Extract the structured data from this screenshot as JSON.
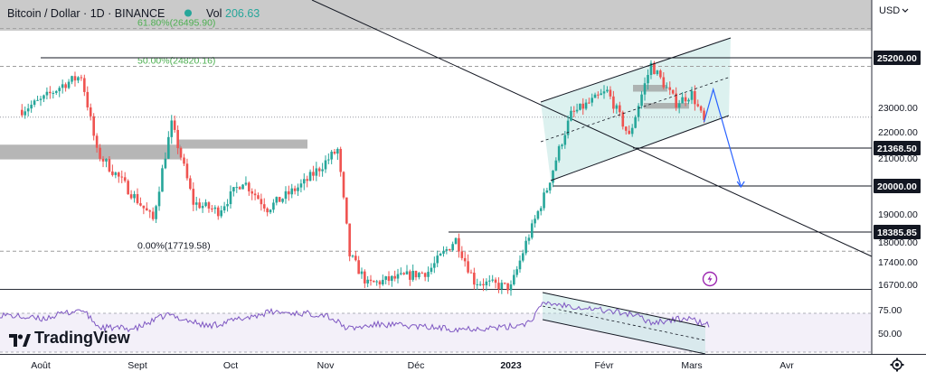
{
  "header": {
    "symbol_title": "Bitcoin / Dollar · 1D · BINANCE",
    "vol_label": "Vol",
    "vol_value": "206.63",
    "currency": "USD",
    "status_color": "#26a69a"
  },
  "price_axis": {
    "ticks": [
      "23000.00",
      "22000.00",
      "21000.00",
      "19000.00",
      "18000.00",
      "17400.00",
      "16700.00"
    ],
    "badges": [
      "25200.00",
      "21368.50",
      "20000.00",
      "18385.85"
    ]
  },
  "rsi_axis": {
    "ticks": [
      "75.00",
      "50.00"
    ]
  },
  "time_axis": {
    "labels": [
      "Août",
      "Sept",
      "Oct",
      "Nov",
      "Déc",
      "2023",
      "Févr",
      "Mars",
      "Avr"
    ]
  },
  "fib_labels": [
    "61.80%(26495.90)",
    "50.00%(24820.16)",
    "0.00%(17719.58)"
  ],
  "branding": {
    "logo_text": "TradingView"
  },
  "colors": {
    "up": "#26a69a",
    "down": "#ef5350",
    "projection": "#2962ff",
    "rsi": "#7e57c2",
    "fib": "#4caf50"
  },
  "chart_data": {
    "type": "candlestick",
    "title": "Bitcoin / Dollar · 1D · BINANCE",
    "y_unit": "USD",
    "price_levels": [
      25200.0,
      21368.5,
      20000.0,
      18385.85
    ],
    "fib_levels": [
      {
        "label": "61.80%",
        "value": 26495.9
      },
      {
        "label": "50.00%",
        "value": 24820.16
      },
      {
        "label": "0.00%",
        "value": 17719.58
      }
    ],
    "price_path_approx": [
      [
        "2022-07-26",
        22900
      ],
      [
        "2022-08-01",
        23300
      ],
      [
        "2022-08-08",
        24000
      ],
      [
        "2022-08-14",
        24400
      ],
      [
        "2022-08-19",
        21200
      ],
      [
        "2022-08-26",
        20300
      ],
      [
        "2022-09-06",
        18800
      ],
      [
        "2022-09-12",
        22300
      ],
      [
        "2022-09-19",
        19400
      ],
      [
        "2022-09-27",
        19100
      ],
      [
        "2022-10-05",
        20200
      ],
      [
        "2022-10-13",
        19200
      ],
      [
        "2022-10-25",
        20100
      ],
      [
        "2022-11-05",
        21300
      ],
      [
        "2022-11-09",
        17600
      ],
      [
        "2022-11-15",
        16700
      ],
      [
        "2022-12-05",
        17100
      ],
      [
        "2022-12-14",
        18100
      ],
      [
        "2022-12-20",
        16800
      ],
      [
        "2023-01-01",
        16600
      ],
      [
        "2023-01-13",
        19900
      ],
      [
        "2023-01-21",
        22700
      ],
      [
        "2023-02-02",
        23700
      ],
      [
        "2023-02-09",
        21800
      ],
      [
        "2023-02-16",
        24900
      ],
      [
        "2023-02-24",
        23200
      ],
      [
        "2023-03-01",
        23600
      ],
      [
        "2023-03-05",
        22400
      ]
    ],
    "projection": [
      [
        "2023-03-05",
        22400
      ],
      [
        "2023-03-08",
        23800
      ],
      [
        "2023-03-17",
        20000
      ]
    ],
    "rsi_ticks": [
      75,
      50
    ],
    "x_labels": [
      "Août",
      "Sept",
      "Oct",
      "Nov",
      "Déc",
      "2023",
      "Févr",
      "Mars",
      "Avr"
    ]
  }
}
